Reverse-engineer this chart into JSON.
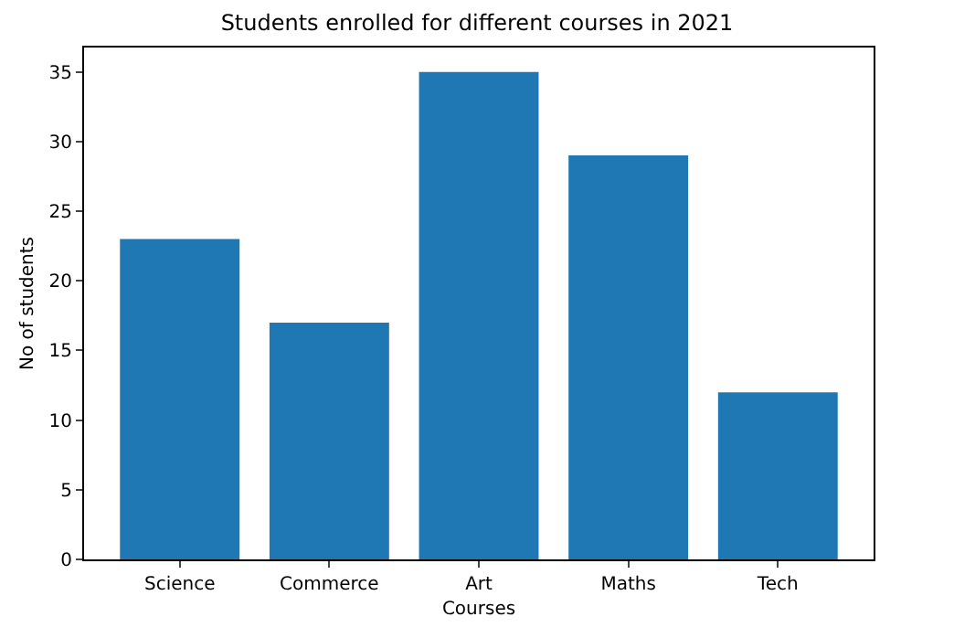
{
  "chart_data": {
    "type": "bar",
    "title": "Students enrolled for different courses in 2021",
    "xlabel": "Courses",
    "ylabel": "No of students",
    "categories": [
      "Science",
      "Commerce",
      "Art",
      "Maths",
      "Tech"
    ],
    "values": [
      23,
      17,
      35,
      29,
      12
    ],
    "color": "#1f77b4",
    "ylim": [
      0,
      36.75
    ],
    "yticks": [
      0,
      5,
      10,
      15,
      20,
      25,
      30,
      35
    ]
  }
}
